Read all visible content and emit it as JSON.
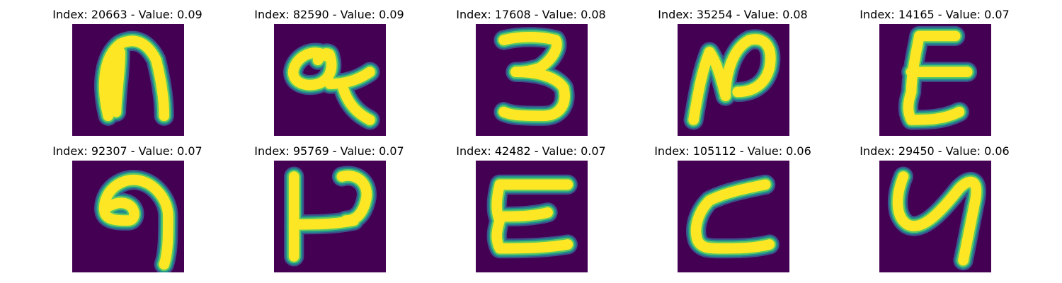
{
  "colors": {
    "background": "#440154",
    "stroke_core": "#fde725",
    "stroke_edge_1": "#5ec962",
    "stroke_edge_2": "#21918c",
    "stroke_edge_3": "#3b528b"
  },
  "panels": [
    {
      "title": "Index: 20663 - Value: 0.09"
    },
    {
      "title": "Index: 82590 - Value: 0.09"
    },
    {
      "title": "Index: 17608 - Value: 0.08"
    },
    {
      "title": "Index: 35254 - Value: 0.08"
    },
    {
      "title": "Index: 14165 - Value: 0.07"
    },
    {
      "title": "Index: 92307 - Value: 0.07"
    },
    {
      "title": "Index: 95769 - Value: 0.07"
    },
    {
      "title": "Index: 42482 - Value: 0.07"
    },
    {
      "title": "Index: 105112 - Value: 0.06"
    },
    {
      "title": "Index: 29450 - Value: 0.06"
    }
  ]
}
